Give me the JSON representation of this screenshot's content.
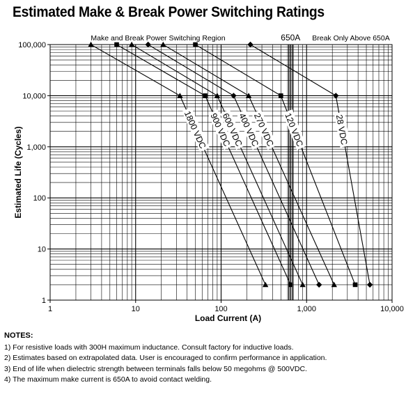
{
  "title": "Estimated Make & Break Power Switching Ratings",
  "chart_data": {
    "type": "line",
    "title": "Estimated Make & Break Power Switching Ratings",
    "xlabel": "Load Current (A)",
    "ylabel": "Estimated Life (Cycles)",
    "x_scale": "log",
    "y_scale": "log",
    "xlim": [
      1,
      10000
    ],
    "ylim": [
      1,
      100000
    ],
    "x_ticks": [
      1,
      10,
      100,
      1000,
      10000
    ],
    "x_tick_labels": [
      "1",
      "10",
      "100",
      "1,000",
      "10,000"
    ],
    "y_ticks": [
      1,
      10,
      100,
      1000,
      10000,
      100000
    ],
    "y_tick_labels": [
      "1",
      "10",
      "100",
      "1,000",
      "10,000",
      "100,000"
    ],
    "grid": true,
    "annotations": {
      "region_label": "Make and Break Power Switching Region",
      "limit_label": "650A",
      "limit_value": 650,
      "break_label": "Break Only Above 650A"
    },
    "series": [
      {
        "name": "1800 VDC",
        "marker": "triangle",
        "x": [
          1,
          3,
          33,
          330
        ],
        "y": [
          100000,
          100000,
          10000,
          2
        ]
      },
      {
        "name": "900 VDC",
        "marker": "square",
        "x": [
          1,
          6,
          65,
          650
        ],
        "y": [
          100000,
          100000,
          10000,
          2
        ]
      },
      {
        "name": "600 VDC",
        "marker": "triangle",
        "x": [
          1,
          9,
          90,
          900
        ],
        "y": [
          100000,
          100000,
          10000,
          2
        ]
      },
      {
        "name": "400 VDC",
        "marker": "diamond",
        "x": [
          1,
          14,
          140,
          1400
        ],
        "y": [
          100000,
          100000,
          10000,
          2
        ]
      },
      {
        "name": "270 VDC",
        "marker": "triangle",
        "x": [
          1,
          21,
          210,
          2100
        ],
        "y": [
          100000,
          100000,
          10000,
          2
        ]
      },
      {
        "name": "120 VDC",
        "marker": "square",
        "x": [
          1,
          50,
          500,
          3700
        ],
        "y": [
          100000,
          100000,
          10000,
          2
        ]
      },
      {
        "name": "28 VDC",
        "marker": "diamond",
        "x": [
          1,
          220,
          2200,
          5500
        ],
        "y": [
          100000,
          100000,
          10000,
          2
        ]
      }
    ]
  },
  "notes": {
    "heading": "NOTES:",
    "items": [
      "1) For resistive loads with 300H maximum inductance. Consult factory for inductive loads.",
      "2) Estimates based on extrapolated data. User is encouraged to confirm performance in application.",
      "3) End of life when dielectric strength between terminals falls below 50 megohms @ 500VDC.",
      "4) The maximum make current is 650A to avoid contact welding."
    ]
  }
}
